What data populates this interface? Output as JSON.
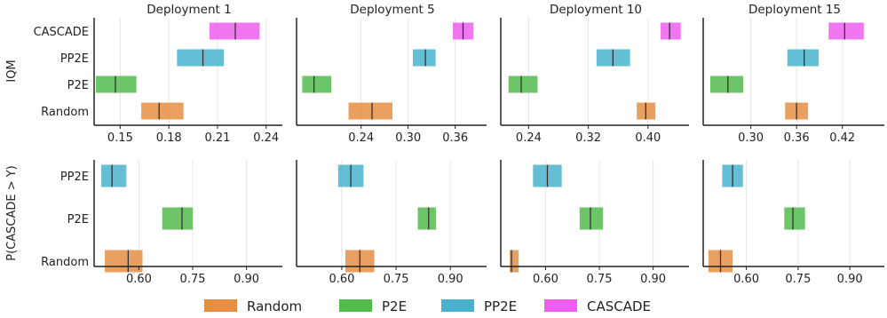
{
  "colors": {
    "Random": "#e58e44",
    "P2E": "#52bb4c",
    "PP2E": "#49b3cc",
    "CASCADE": "#ee5ef0",
    "axis": "#222222",
    "grid": "#e6e6e6",
    "median": "#333333"
  },
  "legend": {
    "position": "bottom",
    "items": [
      "Random",
      "P2E",
      "PP2E",
      "CASCADE"
    ]
  },
  "chart_data": [
    {
      "type": "bar",
      "subtype": "interval",
      "row": "IQM",
      "ylabel": "IQM",
      "methods": [
        "CASCADE",
        "PP2E",
        "P2E",
        "Random"
      ],
      "panels": [
        {
          "title": "Deployment 1",
          "xlim": [
            0.135,
            0.25
          ],
          "xticks": [
            0.15,
            0.18,
            0.21,
            0.24
          ],
          "tick_labels": [
            "0.15",
            "0.18",
            "0.21",
            "0.24"
          ],
          "intervals": {
            "CASCADE": [
              0.205,
              0.221,
              0.236
            ],
            "PP2E": [
              0.185,
              0.201,
              0.214
            ],
            "P2E": [
              0.135,
              0.147,
              0.16
            ],
            "Random": [
              0.163,
              0.174,
              0.189
            ]
          }
        },
        {
          "title": "Deployment 5",
          "xlim": [
            0.16,
            0.4
          ],
          "xticks": [
            0.24,
            0.3,
            0.36
          ],
          "tick_labels": [
            "0.24",
            "0.30",
            "0.36"
          ],
          "intervals": {
            "CASCADE": [
              0.357,
              0.37,
              0.383
            ],
            "PP2E": [
              0.306,
              0.322,
              0.335
            ],
            "P2E": [
              0.165,
              0.18,
              0.202
            ],
            "Random": [
              0.224,
              0.254,
              0.28
            ]
          }
        },
        {
          "title": "Deployment 10",
          "xlim": [
            0.205,
            0.455
          ],
          "xticks": [
            0.24,
            0.32,
            0.4
          ],
          "tick_labels": [
            "0.24",
            "0.32",
            "0.40"
          ],
          "intervals": {
            "CASCADE": [
              0.417,
              0.429,
              0.444
            ],
            "PP2E": [
              0.331,
              0.353,
              0.376
            ],
            "P2E": [
              0.213,
              0.23,
              0.252
            ],
            "Random": [
              0.385,
              0.397,
              0.41
            ]
          }
        },
        {
          "title": "Deployment 15",
          "xlim": [
            0.24,
            0.475
          ],
          "xticks": [
            0.3,
            0.36,
            0.42
          ],
          "tick_labels": [
            "0.30",
            "0.36",
            "0.42"
          ],
          "intervals": {
            "CASCADE": [
              0.402,
              0.423,
              0.448
            ],
            "PP2E": [
              0.348,
              0.37,
              0.389
            ],
            "P2E": [
              0.247,
              0.27,
              0.29
            ],
            "Random": [
              0.345,
              0.36,
              0.375
            ]
          }
        }
      ]
    },
    {
      "type": "bar",
      "subtype": "interval",
      "row": "P(CASCADE > Y)",
      "ylabel": "P(CASCADE > Y)",
      "methods": [
        "PP2E",
        "P2E",
        "Random"
      ],
      "panels": [
        {
          "xlim": [
            0.48,
            1.0
          ],
          "xticks": [
            0.6,
            0.75,
            0.9
          ],
          "tick_labels": [
            "0.60",
            "0.75",
            "0.90"
          ],
          "intervals": {
            "PP2E": [
              0.495,
              0.525,
              0.565
            ],
            "P2E": [
              0.665,
              0.72,
              0.75
            ],
            "Random": [
              0.505,
              0.57,
              0.61
            ]
          }
        },
        {
          "xlim": [
            0.48,
            1.0
          ],
          "xticks": [
            0.6,
            0.75,
            0.9
          ],
          "tick_labels": [
            "0.60",
            "0.75",
            "0.90"
          ],
          "intervals": {
            "PP2E": [
              0.59,
              0.625,
              0.66
            ],
            "P2E": [
              0.81,
              0.84,
              0.86
            ],
            "Random": [
              0.61,
              0.65,
              0.69
            ]
          }
        },
        {
          "xlim": [
            0.48,
            1.0
          ],
          "xticks": [
            0.6,
            0.75,
            0.9
          ],
          "tick_labels": [
            "0.60",
            "0.75",
            "0.90"
          ],
          "intervals": {
            "PP2E": [
              0.565,
              0.605,
              0.645
            ],
            "P2E": [
              0.695,
              0.725,
              0.76
            ],
            "Random": [
              0.5,
              0.505,
              0.525
            ]
          }
        },
        {
          "xlim": [
            0.48,
            1.0
          ],
          "xticks": [
            0.6,
            0.75,
            0.9
          ],
          "tick_labels": [
            "0.60",
            "0.75",
            "0.90"
          ],
          "intervals": {
            "PP2E": [
              0.53,
              0.56,
              0.59
            ],
            "P2E": [
              0.71,
              0.735,
              0.77
            ],
            "Random": [
              0.49,
              0.525,
              0.56
            ]
          }
        }
      ]
    }
  ]
}
